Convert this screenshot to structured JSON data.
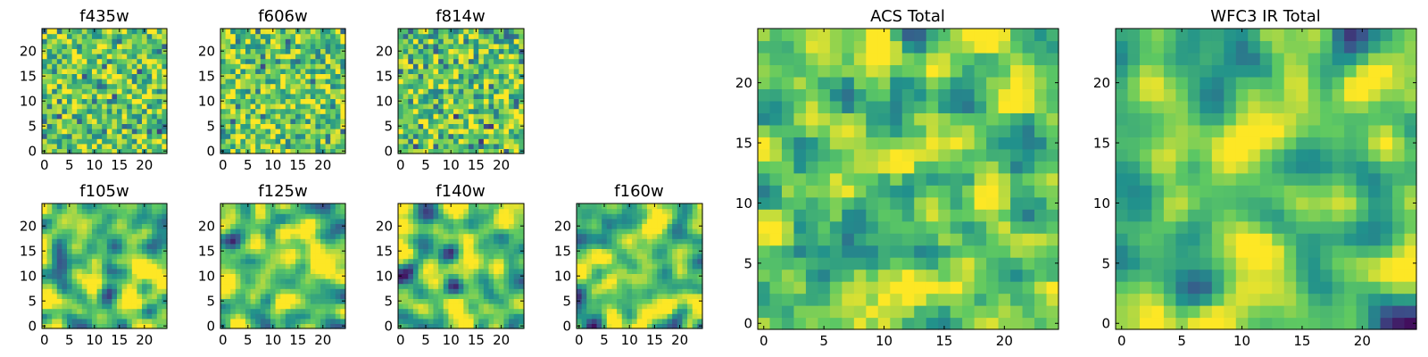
{
  "colors": {
    "background": "#ffffff",
    "axes_frame": "#000000",
    "colormap": "viridis"
  },
  "chart_data": [
    {
      "type": "heatmap",
      "title": "f435w",
      "colormap": "viridis",
      "grid_size": [
        25,
        25
      ],
      "x_range": [
        -0.5,
        24.5
      ],
      "y_range": [
        -0.5,
        24.5
      ],
      "xticks": [
        0,
        5,
        10,
        15,
        20
      ],
      "yticks": [
        0,
        5,
        10,
        15,
        20
      ],
      "xtick_labels": [
        "0",
        "5",
        "10",
        "15",
        "20"
      ],
      "ytick_labels": [
        "0",
        "5",
        "10",
        "15",
        "20"
      ],
      "noise_seed": 11,
      "noise_smooth": 0,
      "value_mean": 0.74,
      "value_spread": 0.2
    },
    {
      "type": "heatmap",
      "title": "f606w",
      "colormap": "viridis",
      "grid_size": [
        25,
        25
      ],
      "x_range": [
        -0.5,
        24.5
      ],
      "y_range": [
        -0.5,
        24.5
      ],
      "xticks": [
        0,
        5,
        10,
        15,
        20
      ],
      "yticks": [
        0,
        5,
        10,
        15,
        20
      ],
      "xtick_labels": [
        "0",
        "5",
        "10",
        "15",
        "20"
      ],
      "ytick_labels": [
        "0",
        "5",
        "10",
        "15",
        "20"
      ],
      "noise_seed": 23,
      "noise_smooth": 0,
      "value_mean": 0.75,
      "value_spread": 0.2
    },
    {
      "type": "heatmap",
      "title": "f814w",
      "colormap": "viridis",
      "grid_size": [
        25,
        25
      ],
      "x_range": [
        -0.5,
        24.5
      ],
      "y_range": [
        -0.5,
        24.5
      ],
      "xticks": [
        0,
        5,
        10,
        15,
        20
      ],
      "yticks": [
        0,
        5,
        10,
        15,
        20
      ],
      "xtick_labels": [
        "0",
        "5",
        "10",
        "15",
        "20"
      ],
      "ytick_labels": [
        "0",
        "5",
        "10",
        "15",
        "20"
      ],
      "noise_seed": 37,
      "noise_smooth": 0,
      "value_mean": 0.73,
      "value_spread": 0.21
    },
    {
      "type": "heatmap",
      "title": "f105w",
      "colormap": "viridis",
      "grid_size": [
        25,
        25
      ],
      "x_range": [
        -0.5,
        24.5
      ],
      "y_range": [
        -0.5,
        24.5
      ],
      "xticks": [
        0,
        5,
        10,
        15,
        20
      ],
      "yticks": [
        0,
        5,
        10,
        15,
        20
      ],
      "xtick_labels": [
        "0",
        "5",
        "10",
        "15",
        "20"
      ],
      "ytick_labels": [
        "0",
        "5",
        "10",
        "15",
        "20"
      ],
      "noise_seed": 41,
      "noise_smooth": 2,
      "value_mean": 0.72,
      "value_spread": 0.2
    },
    {
      "type": "heatmap",
      "title": "f125w",
      "colormap": "viridis",
      "grid_size": [
        25,
        25
      ],
      "x_range": [
        -0.5,
        24.5
      ],
      "y_range": [
        -0.5,
        24.5
      ],
      "xticks": [
        0,
        5,
        10,
        15,
        20
      ],
      "yticks": [
        0,
        5,
        10,
        15,
        20
      ],
      "xtick_labels": [
        "0",
        "5",
        "10",
        "15",
        "20"
      ],
      "ytick_labels": [
        "0",
        "5",
        "10",
        "15",
        "20"
      ],
      "noise_seed": 53,
      "noise_smooth": 2,
      "value_mean": 0.74,
      "value_spread": 0.2
    },
    {
      "type": "heatmap",
      "title": "f140w",
      "colormap": "viridis",
      "grid_size": [
        25,
        25
      ],
      "x_range": [
        -0.5,
        24.5
      ],
      "y_range": [
        -0.5,
        24.5
      ],
      "xticks": [
        0,
        5,
        10,
        15,
        20
      ],
      "yticks": [
        0,
        5,
        10,
        15,
        20
      ],
      "xtick_labels": [
        "0",
        "5",
        "10",
        "15",
        "20"
      ],
      "ytick_labels": [
        "0",
        "5",
        "10",
        "15",
        "20"
      ],
      "noise_seed": 67,
      "noise_smooth": 2,
      "value_mean": 0.72,
      "value_spread": 0.21
    },
    {
      "type": "heatmap",
      "title": "f160w",
      "colormap": "viridis",
      "grid_size": [
        25,
        25
      ],
      "x_range": [
        -0.5,
        24.5
      ],
      "y_range": [
        -0.5,
        24.5
      ],
      "xticks": [
        0,
        5,
        10,
        15,
        20
      ],
      "yticks": [
        0,
        5,
        10,
        15,
        20
      ],
      "xtick_labels": [
        "0",
        "5",
        "10",
        "15",
        "20"
      ],
      "ytick_labels": [
        "0",
        "5",
        "10",
        "15",
        "20"
      ],
      "noise_seed": 79,
      "noise_smooth": 2,
      "value_mean": 0.73,
      "value_spread": 0.2
    },
    {
      "type": "heatmap",
      "title": "ACS Total",
      "colormap": "viridis",
      "grid_size": [
        25,
        25
      ],
      "x_range": [
        -0.5,
        24.5
      ],
      "y_range": [
        -0.5,
        24.5
      ],
      "xticks": [
        0,
        5,
        10,
        15,
        20
      ],
      "yticks": [
        0,
        5,
        10,
        15,
        20
      ],
      "xtick_labels": [
        "0",
        "5",
        "10",
        "15",
        "20"
      ],
      "ytick_labels": [
        "0",
        "5",
        "10",
        "15",
        "20"
      ],
      "noise_seed": 97,
      "noise_smooth": 1,
      "value_mean": 0.74,
      "value_spread": 0.16
    },
    {
      "type": "heatmap",
      "title": "WFC3 IR Total",
      "colormap": "viridis",
      "grid_size": [
        25,
        25
      ],
      "x_range": [
        -0.5,
        24.5
      ],
      "y_range": [
        -0.5,
        24.5
      ],
      "xticks": [
        0,
        5,
        10,
        15,
        20
      ],
      "yticks": [
        0,
        5,
        10,
        15,
        20
      ],
      "xtick_labels": [
        "0",
        "5",
        "10",
        "15",
        "20"
      ],
      "ytick_labels": [
        "0",
        "5",
        "10",
        "15",
        "20"
      ],
      "noise_seed": 113,
      "noise_smooth": 2,
      "value_mean": 0.72,
      "value_spread": 0.17,
      "value_gradient_y": 0.12
    }
  ]
}
